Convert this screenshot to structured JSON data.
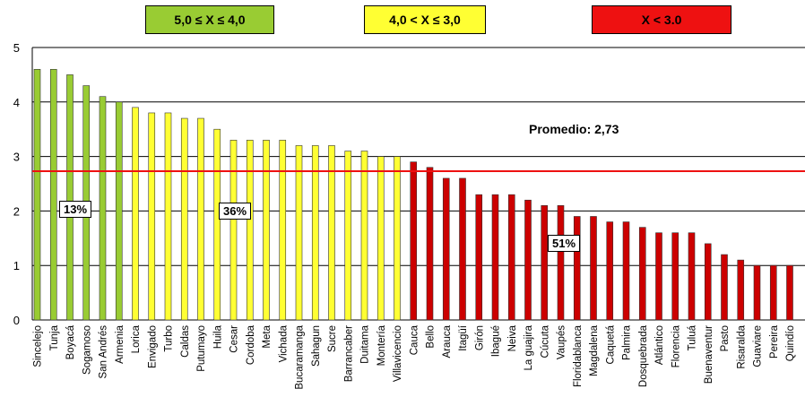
{
  "legend": [
    {
      "label": "5,0 ≤ X ≤ 4,0",
      "color": "#99cc33"
    },
    {
      "label": "4,0 < X ≤ 3,0",
      "color": "#ffff33"
    },
    {
      "label": "X < 3.0",
      "color": "#ee1111"
    }
  ],
  "annotations": {
    "average_label": "Promedio: 2,73",
    "pct_green": "13%",
    "pct_yellow": "36%",
    "pct_red": "51%"
  },
  "colors": {
    "green": "#99cc33",
    "yellow": "#ffff33",
    "red": "#cc0000",
    "average_line": "#ee1111"
  },
  "chart_data": {
    "type": "bar",
    "ylim": [
      0,
      5
    ],
    "yticks": [
      0,
      1,
      2,
      3,
      4,
      5
    ],
    "grid": true,
    "average": 2.73,
    "categories": [
      "Sincelejo",
      "Tunja",
      "Boyacá",
      "Sogamoso",
      "San Andrés",
      "Armenia",
      "Lorica",
      "Envigado",
      "Turbo",
      "Caldas",
      "Putumayo",
      "Huila",
      "Cesar",
      "Cordoba",
      "Meta",
      "Vichada",
      "Bucaramanga",
      "Sahagun",
      "Sucre",
      "Barrancaber",
      "Duitama",
      "Montería",
      "Villavicencio",
      "Cauca",
      "Bello",
      "Arauca",
      "Itagüí",
      "Girón",
      "Ibagué",
      "Neiva",
      "La guajira",
      "Cúcuta",
      "Vaupés",
      "Floridablanca",
      "Magdalena",
      "Caquetá",
      "Palmira",
      "Dosquebrada",
      "Atlántico",
      "Florencia",
      "Tuluá",
      "Buenaventur",
      "Pasto",
      "Risaralda",
      "Guaviare",
      "Pereira",
      "Quindío"
    ],
    "values": [
      4.6,
      4.6,
      4.5,
      4.3,
      4.1,
      4.0,
      3.9,
      3.8,
      3.8,
      3.7,
      3.7,
      3.5,
      3.3,
      3.3,
      3.3,
      3.3,
      3.2,
      3.2,
      3.2,
      3.1,
      3.1,
      3.0,
      3.0,
      2.9,
      2.8,
      2.6,
      2.6,
      2.3,
      2.3,
      2.3,
      2.2,
      2.1,
      2.1,
      1.9,
      1.9,
      1.8,
      1.8,
      1.7,
      1.6,
      1.6,
      1.6,
      1.4,
      1.2,
      1.1,
      1.0,
      1.0,
      1.0
    ],
    "color_groups": [
      "green",
      "green",
      "green",
      "green",
      "green",
      "green",
      "yellow",
      "yellow",
      "yellow",
      "yellow",
      "yellow",
      "yellow",
      "yellow",
      "yellow",
      "yellow",
      "yellow",
      "yellow",
      "yellow",
      "yellow",
      "yellow",
      "yellow",
      "yellow",
      "yellow",
      "red",
      "red",
      "red",
      "red",
      "red",
      "red",
      "red",
      "red",
      "red",
      "red",
      "red",
      "red",
      "red",
      "red",
      "red",
      "red",
      "red",
      "red",
      "red",
      "red",
      "red",
      "red",
      "red",
      "red"
    ]
  }
}
